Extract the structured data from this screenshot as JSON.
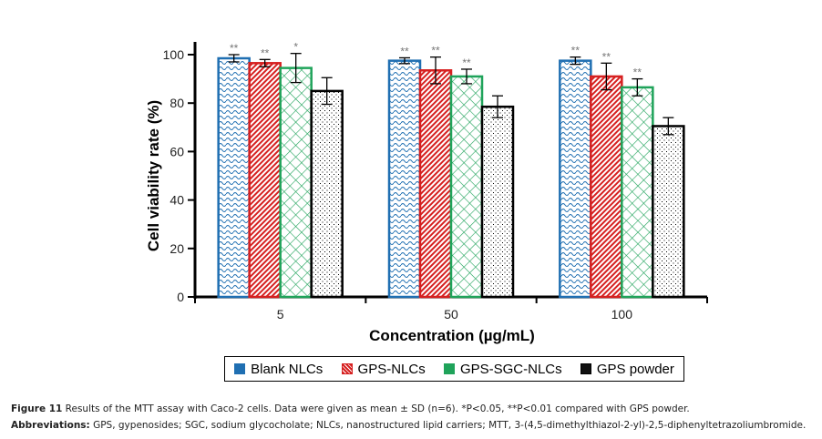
{
  "chart_data": {
    "type": "bar",
    "title": "",
    "xlabel": "Concentration (µg/mL)",
    "ylabel": "Cell viability rate (%)",
    "ylim": [
      0,
      100
    ],
    "yticks": [
      0,
      20,
      40,
      60,
      80,
      100
    ],
    "categories": [
      "5",
      "50",
      "100"
    ],
    "grid": false,
    "legend_position": "bottom",
    "series": [
      {
        "name": "Blank NLCs",
        "color": "#1f6fb2",
        "pattern": "wave",
        "values": [
          98.5,
          97.5,
          97.5
        ],
        "errors": [
          1.5,
          1.2,
          1.5
        ],
        "significance": [
          "**",
          "**",
          "**"
        ]
      },
      {
        "name": "GPS-NLCs",
        "color": "#d62020",
        "pattern": "diagonal",
        "values": [
          96.5,
          93.5,
          91
        ],
        "errors": [
          1.5,
          5.5,
          5.5
        ],
        "significance": [
          "**",
          "**",
          "**"
        ]
      },
      {
        "name": "GPS-SGC-NLCs",
        "color": "#1fa35a",
        "pattern": "crosshatch",
        "values": [
          94.5,
          91,
          86.5
        ],
        "errors": [
          6,
          3,
          3.5
        ],
        "significance": [
          "*",
          "**",
          "**"
        ]
      },
      {
        "name": "GPS powder",
        "color": "#000000",
        "pattern": "dots",
        "values": [
          85,
          78.5,
          70.5
        ],
        "errors": [
          5.5,
          4.5,
          3.5
        ],
        "significance": [
          "",
          "",
          ""
        ]
      }
    ]
  },
  "legend": {
    "items": [
      "Blank NLCs",
      "GPS-NLCs",
      "GPS-SGC-NLCs",
      "GPS powder"
    ]
  },
  "caption": {
    "figure_label": "Figure 11",
    "figure_text": " Results of the MTT assay with Caco-2 cells. Data were given as mean ± SD (n=6). *P<0.05, **P<0.01 compared with GPS powder.",
    "abbrev_label": "Abbreviations:",
    "abbrev_text": " GPS, gypenosides; SGC, sodium glycocholate; NLCs, nanostructured lipid carriers; MTT, 3-(4,5-dimethylthiazol-2-yl)-2,5-diphenyltetrazoliumbromide."
  }
}
